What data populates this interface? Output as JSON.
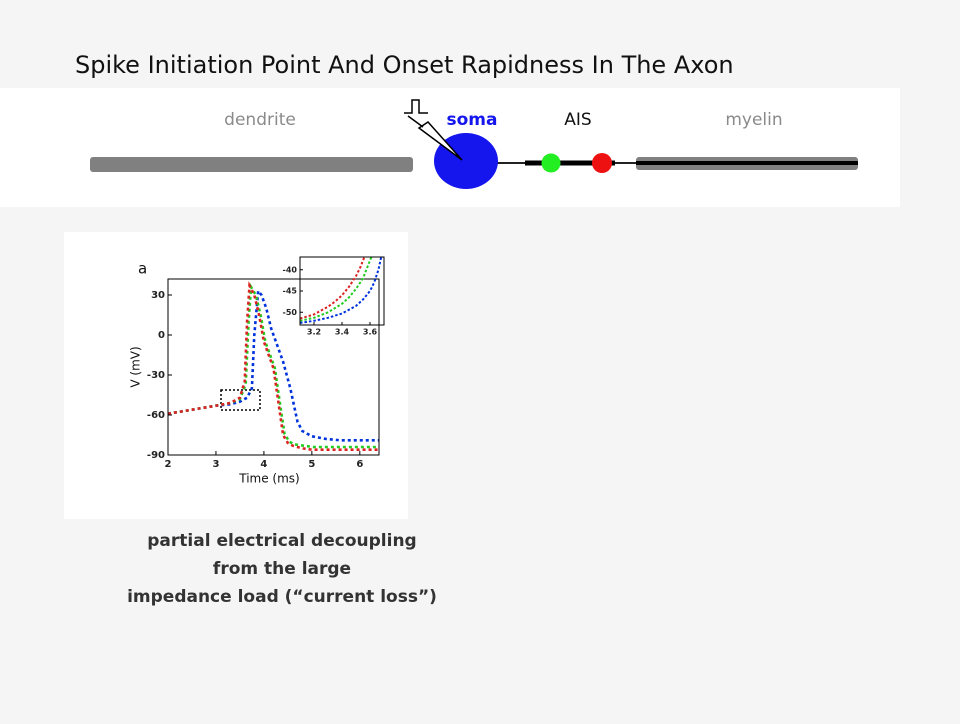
{
  "title": "Spike Initiation Point And Onset Rapidness In The Axon",
  "diagram": {
    "labels": [
      "dendrite",
      "soma",
      "AIS",
      "myelin"
    ]
  },
  "chart_data": [
    {
      "type": "line",
      "panel_label": "a",
      "xlabel": "Time (ms)",
      "ylabel": "V (mV)",
      "xlim": [
        2,
        6.4
      ],
      "ylim": [
        -90,
        42
      ],
      "xticks": [
        2,
        3,
        4,
        5,
        6
      ],
      "yticks": [
        -90,
        -60,
        -30,
        0,
        30
      ],
      "series": [
        {
          "color": "#0033dd",
          "x": [
            2,
            2.5,
            3,
            3.3,
            3.5,
            3.65,
            3.75,
            3.8,
            3.88,
            3.95,
            4.05,
            4.15,
            4.3,
            4.4,
            4.55,
            4.7,
            4.8,
            5.0,
            5.3,
            5.6,
            6,
            6.4
          ],
          "values": [
            -59,
            -56,
            -53,
            -52,
            -50,
            -47,
            -40,
            0,
            33,
            30,
            20,
            5,
            -10,
            -20,
            -40,
            -65,
            -72,
            -76,
            -78,
            -79,
            -79,
            -79
          ]
        },
        {
          "color": "#22cc22",
          "x": [
            2,
            2.5,
            3,
            3.3,
            3.5,
            3.62,
            3.68,
            3.73,
            3.83,
            3.93,
            4.03,
            4.13,
            4.23,
            4.33,
            4.43,
            4.53,
            4.63,
            4.83,
            5.03,
            5.5,
            6,
            6.4
          ],
          "values": [
            -59,
            -56,
            -53,
            -51,
            -48,
            -37,
            10,
            36,
            30,
            15,
            -5,
            -15,
            -25,
            -50,
            -74,
            -80,
            -82,
            -83,
            -84,
            -84,
            -84,
            -84
          ]
        },
        {
          "color": "#dd2222",
          "x": [
            2,
            2.5,
            3,
            3.3,
            3.5,
            3.6,
            3.65,
            3.7,
            3.8,
            3.9,
            4.0,
            4.1,
            4.2,
            4.3,
            4.4,
            4.5,
            4.6,
            4.8,
            5.0,
            5.5,
            6,
            6.4
          ],
          "values": [
            -59,
            -56,
            -53,
            -51,
            -47,
            -35,
            10,
            37,
            30,
            15,
            -5,
            -15,
            -25,
            -50,
            -75,
            -81,
            -83,
            -85,
            -86,
            -86,
            -86,
            -86
          ]
        }
      ]
    },
    {
      "type": "line",
      "xlim": [
        3.1,
        3.7
      ],
      "ylim": [
        -53,
        -37
      ],
      "xticks": [
        3.2,
        3.4,
        3.6
      ],
      "yticks": [
        -40,
        -45,
        -50
      ],
      "series": [
        {
          "color": "#0033dd",
          "x": [
            3.1,
            3.2,
            3.3,
            3.4,
            3.5,
            3.55,
            3.6,
            3.63,
            3.66,
            3.68
          ],
          "values": [
            -52.5,
            -52,
            -51.3,
            -50.3,
            -48.5,
            -47,
            -45,
            -43,
            -40,
            -37
          ]
        },
        {
          "color": "#22cc22",
          "x": [
            3.1,
            3.2,
            3.3,
            3.4,
            3.45,
            3.5,
            3.55,
            3.58,
            3.61
          ],
          "values": [
            -52,
            -51.3,
            -50,
            -48,
            -46.5,
            -44.5,
            -42,
            -39.5,
            -37
          ]
        },
        {
          "color": "#dd2222",
          "x": [
            3.1,
            3.2,
            3.3,
            3.35,
            3.4,
            3.45,
            3.5,
            3.53,
            3.56
          ],
          "values": [
            -51.5,
            -50.5,
            -48.7,
            -47.5,
            -46,
            -44,
            -41.5,
            -39.5,
            -37
          ]
        }
      ]
    }
  ],
  "caption": [
    "partial electrical decoupling",
    "from the large",
    "impedance  load (“current loss”)"
  ]
}
